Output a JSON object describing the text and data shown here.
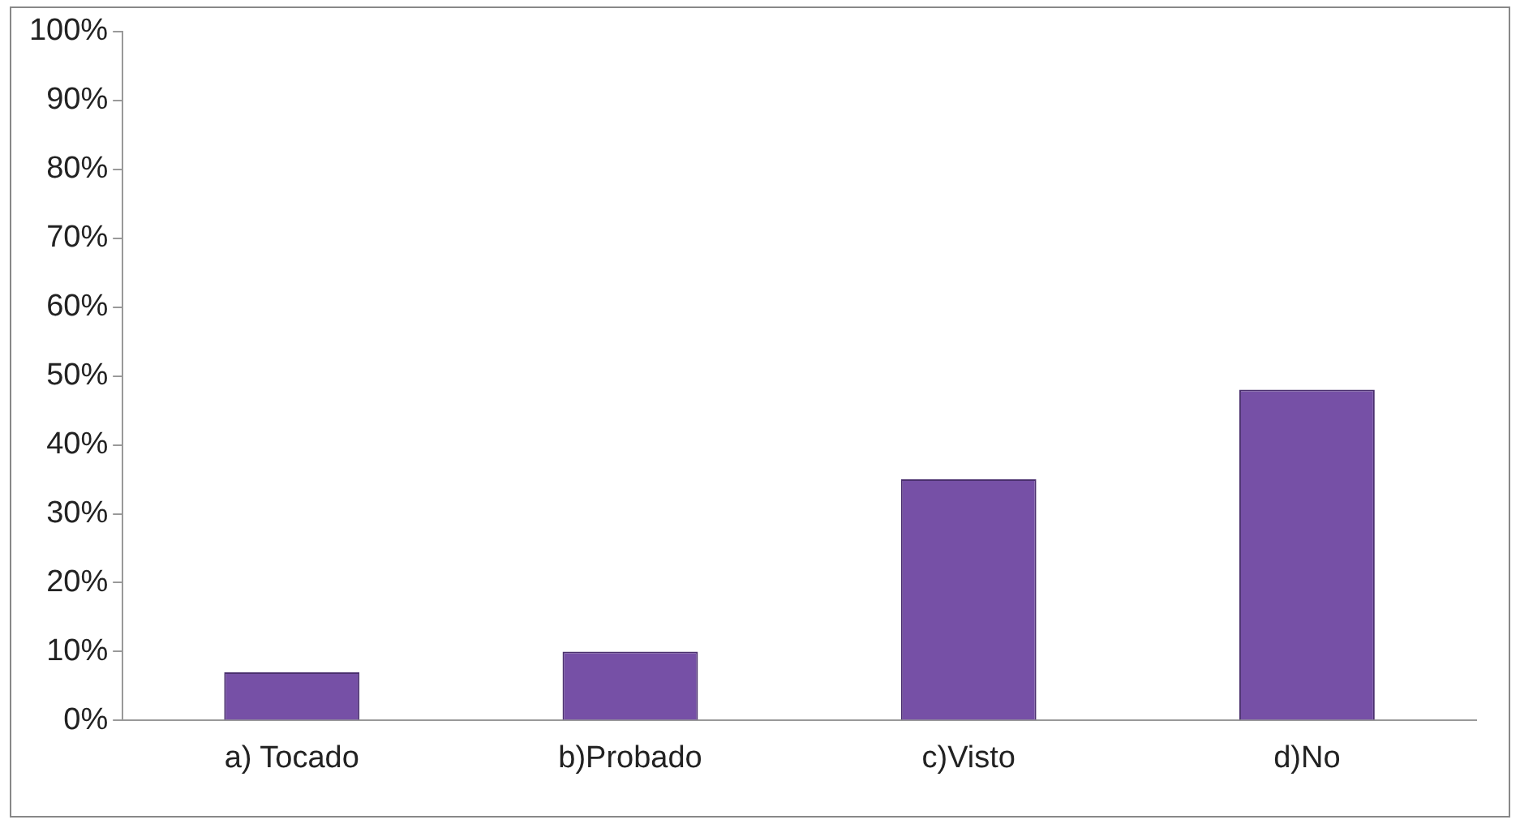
{
  "chart_data": {
    "type": "bar",
    "categories": [
      "a) Tocado",
      "b)Probado",
      "c)Visto",
      "d)No"
    ],
    "values": [
      7,
      10,
      35,
      48
    ],
    "color": "#7650a6",
    "ylim": [
      0,
      100
    ],
    "yticks": [
      {
        "value": 0,
        "label": "0%"
      },
      {
        "value": 10,
        "label": "10%"
      },
      {
        "value": 20,
        "label": "20%"
      },
      {
        "value": 30,
        "label": "30%"
      },
      {
        "value": 40,
        "label": "40%"
      },
      {
        "value": 50,
        "label": "50%"
      },
      {
        "value": 60,
        "label": "60%"
      },
      {
        "value": 70,
        "label": "70%"
      },
      {
        "value": 80,
        "label": "80%"
      },
      {
        "value": 90,
        "label": "90%"
      },
      {
        "value": 100,
        "label": "100%"
      }
    ],
    "grid": false,
    "legend": false
  }
}
